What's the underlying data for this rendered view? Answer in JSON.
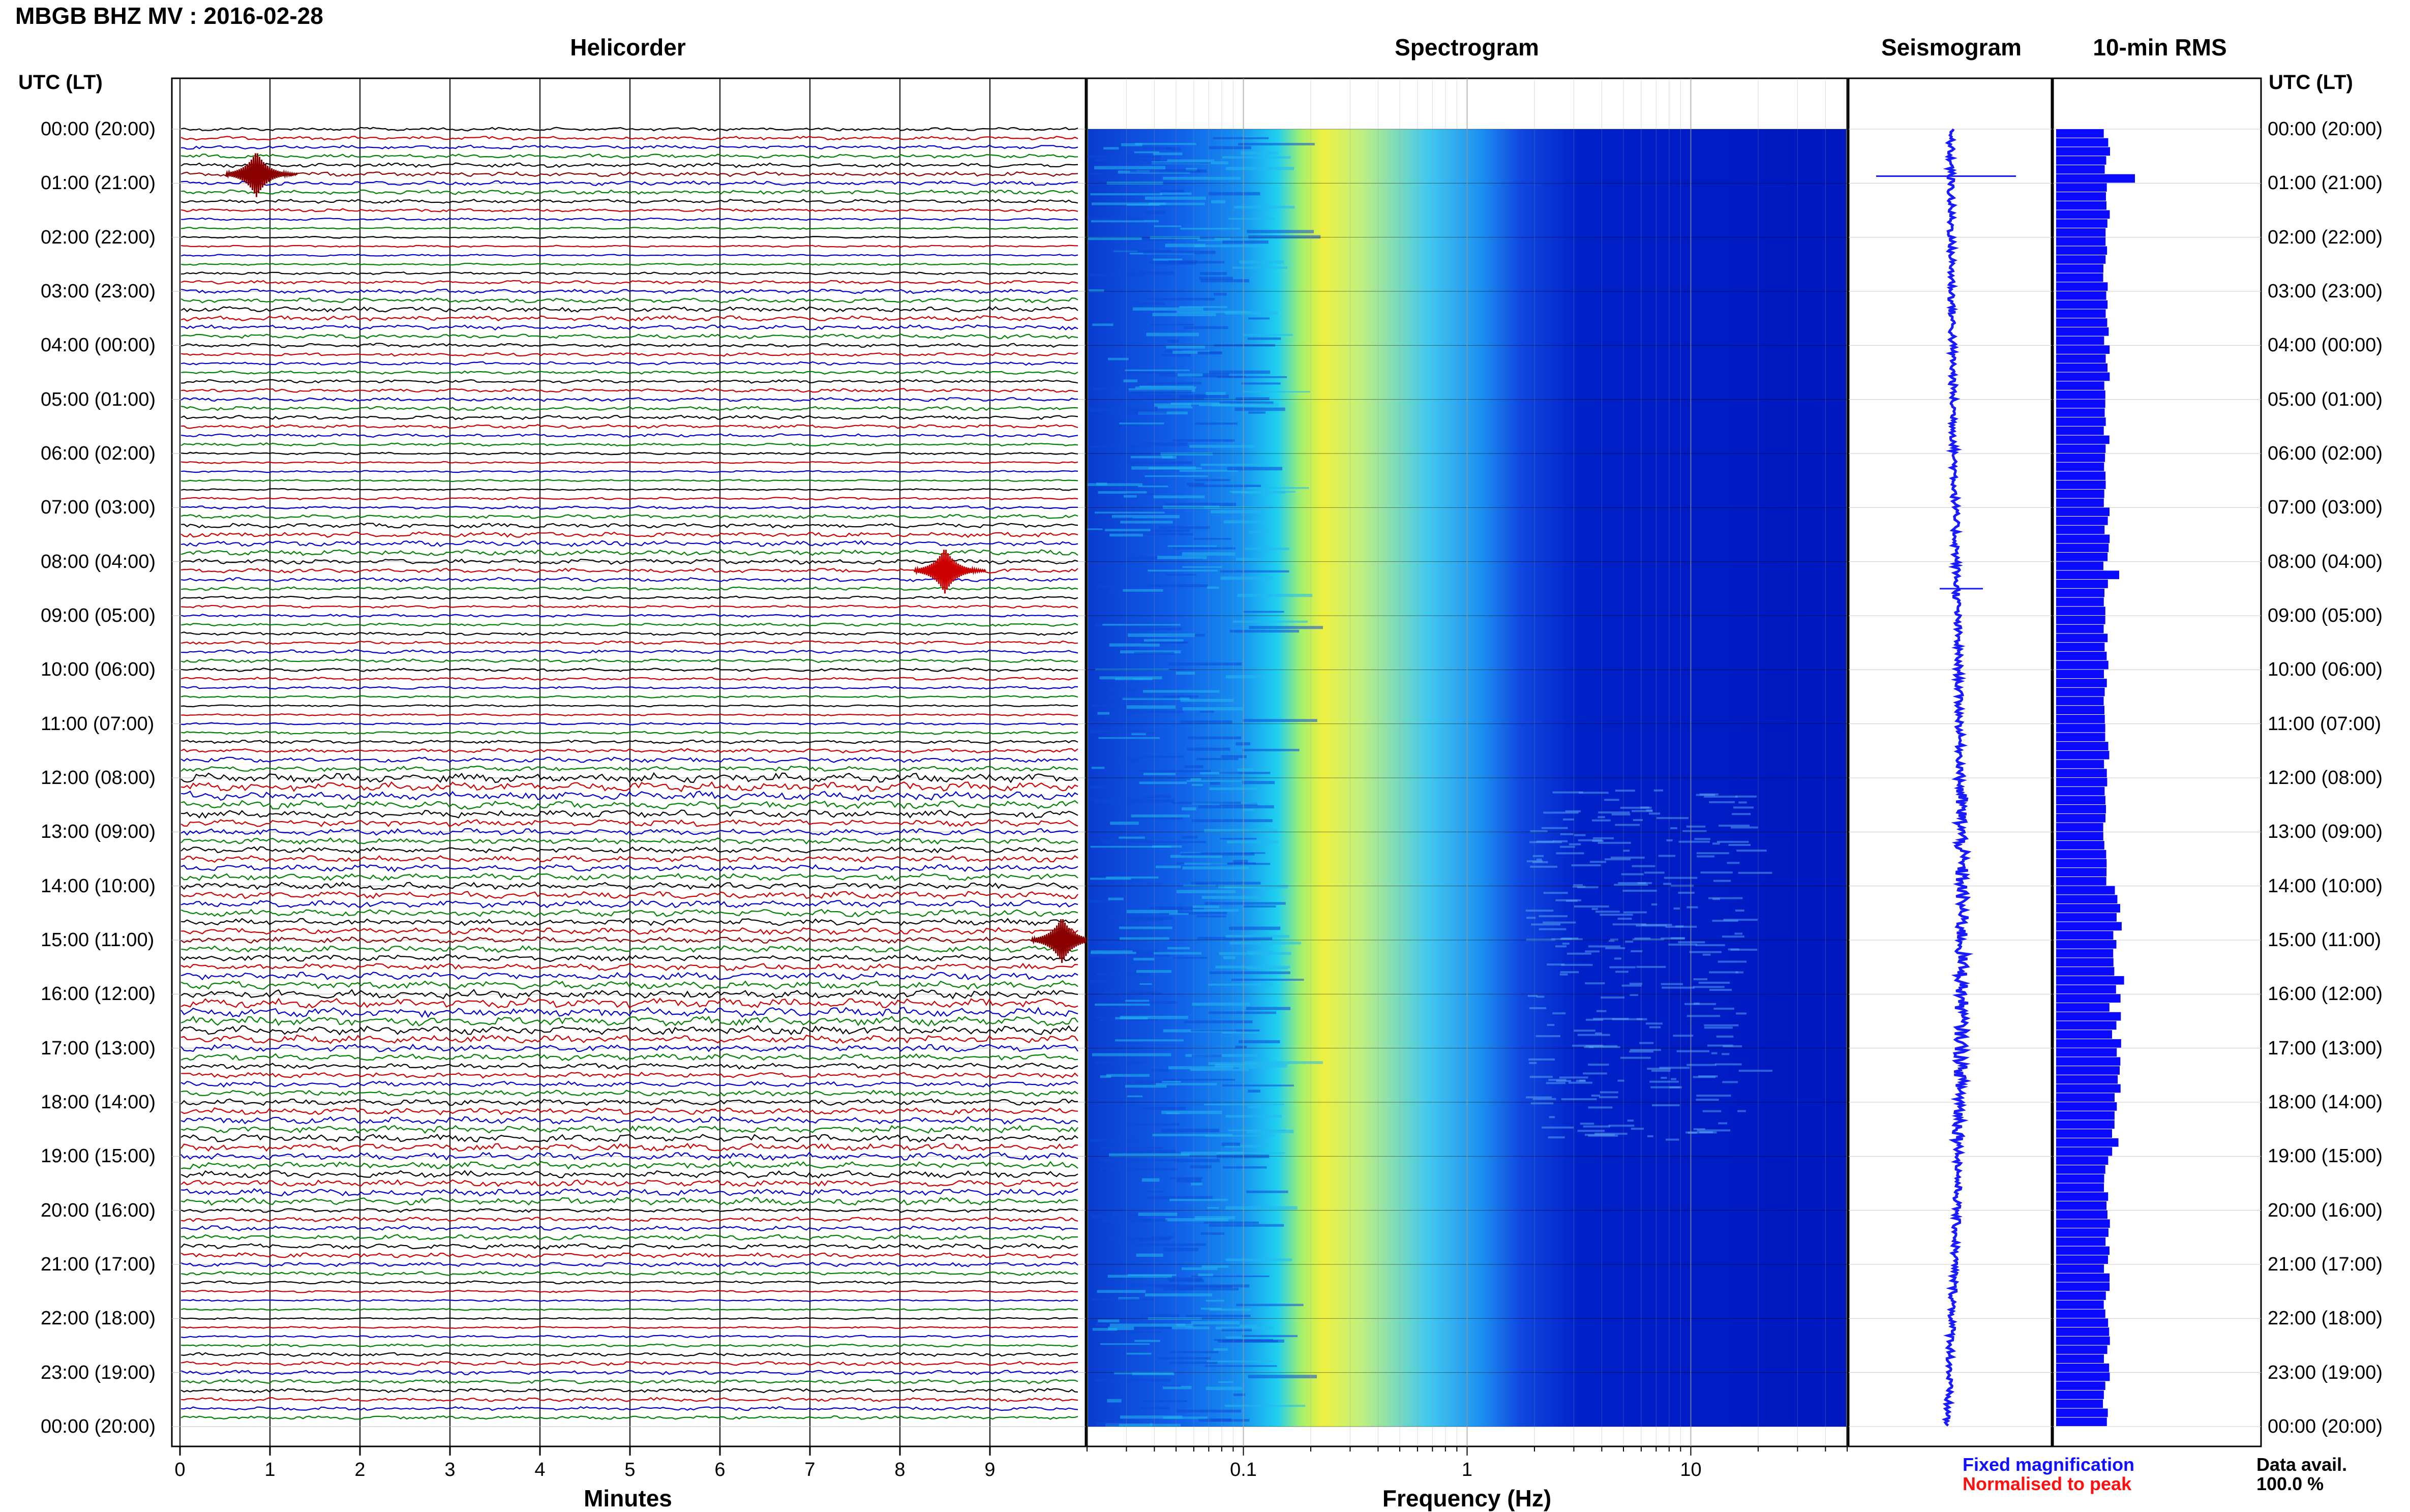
{
  "header": {
    "station_title": "MBGB BHZ MV : 2016-02-28",
    "utc_label_left": "UTC (LT)",
    "utc_label_right": "UTC (LT)"
  },
  "panels": {
    "helicorder": "Helicorder",
    "spectrogram": "Spectrogram",
    "seismogram": "Seismogram",
    "rms": "10-min RMS"
  },
  "hour_labels": [
    "00:00 (20:00)",
    "01:00 (21:00)",
    "02:00 (22:00)",
    "03:00 (23:00)",
    "04:00 (00:00)",
    "05:00 (01:00)",
    "06:00 (02:00)",
    "07:00 (03:00)",
    "08:00 (04:00)",
    "09:00 (05:00)",
    "10:00 (06:00)",
    "11:00 (07:00)",
    "12:00 (08:00)",
    "13:00 (09:00)",
    "14:00 (10:00)",
    "15:00 (11:00)",
    "16:00 (12:00)",
    "17:00 (13:00)",
    "18:00 (14:00)",
    "19:00 (15:00)",
    "20:00 (16:00)",
    "21:00 (17:00)",
    "22:00 (18:00)",
    "23:00 (19:00)",
    "00:00 (20:00)"
  ],
  "footer": {
    "legend_fixed": "Fixed magnification",
    "legend_normalised": "Normalised to peak",
    "data_avail_label": "Data avail.",
    "data_avail_value": "100.0 %"
  },
  "colors": {
    "trace_cycle": [
      "#000000",
      "#cc0000",
      "#0000cc",
      "#008000"
    ],
    "event_trace": "#8b0000",
    "seismogram": "#1a1aff",
    "rms": "#0a0aff",
    "legend_fixed": "#1010ff",
    "legend_normalised": "#ff1010"
  },
  "chart_data": [
    {
      "type": "line",
      "title": "Helicorder",
      "xlabel": "Minutes",
      "x_ticks": [
        "0",
        "1",
        "2",
        "3",
        "4",
        "5",
        "6",
        "7",
        "8",
        "9"
      ],
      "xlim": [
        0,
        10
      ],
      "lines_per_hour": 6,
      "line_count": 144,
      "events": [
        {
          "hour_index": 0,
          "line_in_hour": 5,
          "minute": 0.85,
          "color": "event"
        },
        {
          "hour_index": 8,
          "line_in_hour": 1,
          "minute": 8.5,
          "color": "cycle"
        },
        {
          "hour_index": 15,
          "line_in_hour": 0,
          "minute": 9.8,
          "color": "event"
        }
      ]
    },
    {
      "type": "heatmap",
      "title": "Spectrogram",
      "xlabel": "Frequency (Hz)",
      "xscale": "log",
      "xlim": [
        0.02,
        50
      ],
      "x_ticks": [
        "0.1",
        "1",
        "10"
      ]
    },
    {
      "type": "line",
      "title": "Seismogram"
    },
    {
      "type": "bar",
      "title": "10-min RMS"
    }
  ]
}
